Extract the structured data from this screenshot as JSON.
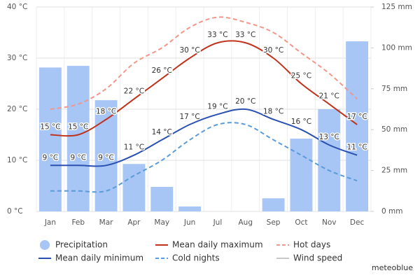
{
  "chart_data": {
    "type": "combo",
    "categories": [
      "Jan",
      "Feb",
      "Mar",
      "Apr",
      "May",
      "Jun",
      "Jul",
      "Aug",
      "Sep",
      "Oct",
      "Nov",
      "Dec"
    ],
    "ylim": [
      0,
      40
    ],
    "yticks": [
      {
        "value": 0,
        "label": "0 °C"
      },
      {
        "value": 10,
        "label": "10 °C"
      },
      {
        "value": 20,
        "label": "20 °C"
      },
      {
        "value": 30,
        "label": "30 °C"
      },
      {
        "value": 40,
        "label": "40 °C"
      }
    ],
    "y2lim": [
      0,
      125
    ],
    "y2ticks": [
      {
        "value": 0,
        "label": "0 mm"
      },
      {
        "value": 25,
        "label": "25 mm"
      },
      {
        "value": 50,
        "label": "50 mm"
      },
      {
        "value": 75,
        "label": "75 mm"
      },
      {
        "value": 100,
        "label": "100 mm"
      },
      {
        "value": 125,
        "label": "125 mm"
      }
    ],
    "grid": true,
    "series": [
      {
        "name": "Precipitation",
        "type": "bar",
        "axis": "y2",
        "color": "#a7c5f5",
        "values": [
          88,
          89,
          68,
          29,
          15,
          3,
          0,
          0,
          8,
          44.5,
          62.5,
          104
        ]
      },
      {
        "name": "Mean daily maximum",
        "type": "line",
        "color": "#c0321c",
        "dashed": false,
        "values": [
          15,
          15,
          18,
          22,
          26,
          30,
          33,
          33,
          30,
          25,
          21,
          17
        ],
        "value_labels": [
          "15 °C",
          "15 °C",
          "18 °C",
          "22 °C",
          "26 °C",
          "30 °C",
          "33 °C",
          "33 °C",
          "30 °C",
          "25 °C",
          "21 °C",
          "17 °C"
        ]
      },
      {
        "name": "Hot days",
        "type": "line",
        "color": "#f2978a",
        "dashed": true,
        "values": [
          20,
          21,
          24,
          29,
          32,
          36,
          38,
          37,
          35,
          31,
          27,
          22
        ]
      },
      {
        "name": "Mean daily minimum",
        "type": "line",
        "color": "#2a50b0",
        "dashed": false,
        "values": [
          9,
          9,
          9,
          11,
          14,
          17,
          19,
          20,
          18,
          16,
          13,
          11
        ],
        "value_labels": [
          "9 °C",
          "9 °C",
          "9 °C",
          "11 °C",
          "14 °C",
          "17 °C",
          "19 °C",
          "20 °C",
          "18 °C",
          "16 °C",
          "13 °C",
          "11 °C"
        ]
      },
      {
        "name": "Cold nights",
        "type": "line",
        "color": "#5a9bd8",
        "dashed": true,
        "values": [
          4,
          4,
          4,
          7,
          10,
          14,
          17,
          17,
          14,
          11,
          8,
          6
        ]
      },
      {
        "name": "Wind speed",
        "type": "line",
        "color": "#c8c8c8",
        "visible": false
      }
    ],
    "watermark": "meteoblue"
  }
}
